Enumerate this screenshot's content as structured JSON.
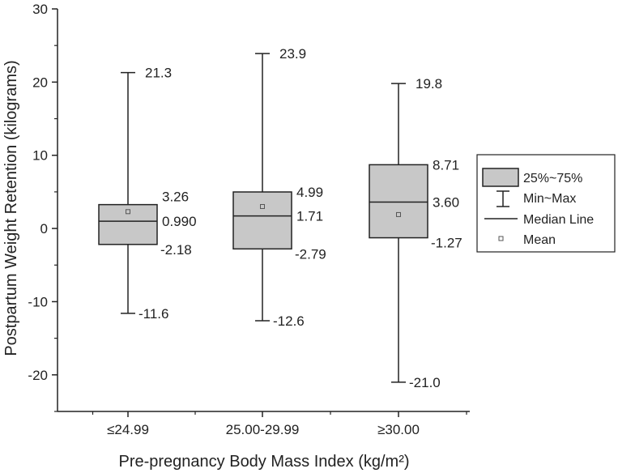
{
  "chart_data": {
    "type": "boxplot",
    "title": "",
    "xlabel": "Pre-pregnancy Body Mass Index (kg/m²)",
    "ylabel": "Postpartum Weight Retention (kilograms)",
    "ylim": [
      -25,
      30
    ],
    "yticks": [
      -20,
      -10,
      0,
      10,
      20,
      30
    ],
    "ytick_labels": [
      "-20",
      "-10",
      "0",
      "10",
      "20",
      "30"
    ],
    "categories": [
      "≤24.99",
      "25.00-29.99",
      "≥30.00"
    ],
    "boxes": [
      {
        "category": "≤24.99",
        "min": -11.6,
        "q1": -2.18,
        "median": 0.99,
        "q3": 3.26,
        "max": 21.3,
        "mean": 2.3,
        "labels": {
          "max": "21.3",
          "q3": "3.26",
          "median": "0.990",
          "q1": "-2.18",
          "min": "-11.6"
        }
      },
      {
        "category": "25.00-29.99",
        "min": -12.6,
        "q1": -2.79,
        "median": 1.71,
        "q3": 4.99,
        "max": 23.9,
        "mean": 3.0,
        "labels": {
          "max": "23.9",
          "q3": "4.99",
          "median": "1.71",
          "q1": "-2.79",
          "min": "-12.6"
        }
      },
      {
        "category": "≥30.00",
        "min": -21.0,
        "q1": -1.27,
        "median": 3.6,
        "q3": 8.71,
        "max": 19.8,
        "mean": 1.9,
        "labels": {
          "max": "19.8",
          "q3": "8.71",
          "median": "3.60",
          "q1": "-1.27",
          "min": "-21.0"
        }
      }
    ],
    "legend": {
      "position": "right",
      "entries": [
        "25%~75%",
        "Min~Max",
        "Median Line",
        "Mean"
      ]
    },
    "colors": {
      "box_fill": "#c8c8c8",
      "stroke": "#222222"
    }
  }
}
